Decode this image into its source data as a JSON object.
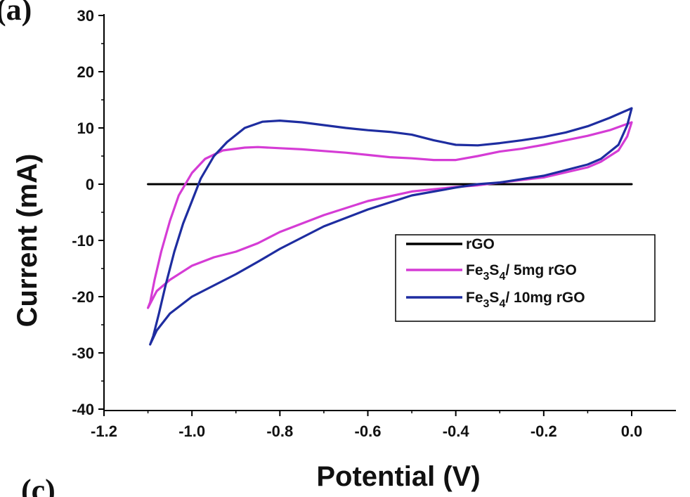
{
  "panel_label_top": "(a)",
  "panel_label_bottom": "(c)",
  "chart_data": {
    "type": "line",
    "xlabel": "Potential (V)",
    "ylabel": "Current (mA)",
    "xlim": [
      -1.2,
      0.1
    ],
    "ylim": [
      -40,
      30
    ],
    "xticks": [
      -1.2,
      -1.0,
      -0.8,
      -0.6,
      -0.4,
      -0.2,
      0.0
    ],
    "xtick_labels": [
      "-1.2",
      "-1.0",
      "-0.8",
      "-0.6",
      "-0.4",
      "-0.2",
      "0.0"
    ],
    "yticks": [
      -40,
      -30,
      -20,
      -10,
      0,
      10,
      20,
      30
    ],
    "ytick_labels": [
      "-40",
      "-30",
      "-20",
      "-10",
      "0",
      "10",
      "20",
      "30"
    ],
    "grid": false,
    "legend_position": "right",
    "series": [
      {
        "name": "rGO",
        "color": "#000000",
        "points": [
          [
            -1.1,
            0
          ],
          [
            0.0,
            0
          ]
        ]
      },
      {
        "name_parts": [
          "Fe",
          "3",
          "S",
          "4",
          "/ 5mg rGO"
        ],
        "color": "#d53cd5",
        "points": [
          [
            -1.1,
            -22
          ],
          [
            -1.095,
            -21
          ],
          [
            -1.085,
            -17
          ],
          [
            -1.07,
            -12
          ],
          [
            -1.05,
            -6.5
          ],
          [
            -1.03,
            -2
          ],
          [
            -1.0,
            2
          ],
          [
            -0.97,
            4.5
          ],
          [
            -0.93,
            6
          ],
          [
            -0.88,
            6.5
          ],
          [
            -0.85,
            6.6
          ],
          [
            -0.8,
            6.4
          ],
          [
            -0.75,
            6.2
          ],
          [
            -0.7,
            5.9
          ],
          [
            -0.65,
            5.6
          ],
          [
            -0.6,
            5.2
          ],
          [
            -0.55,
            4.8
          ],
          [
            -0.5,
            4.6
          ],
          [
            -0.45,
            4.3
          ],
          [
            -0.4,
            4.3
          ],
          [
            -0.35,
            5
          ],
          [
            -0.3,
            5.8
          ],
          [
            -0.25,
            6.3
          ],
          [
            -0.2,
            7
          ],
          [
            -0.15,
            7.8
          ],
          [
            -0.1,
            8.6
          ],
          [
            -0.05,
            9.6
          ],
          [
            0.0,
            11
          ],
          [
            -0.01,
            8.5
          ],
          [
            -0.03,
            6
          ],
          [
            -0.07,
            4
          ],
          [
            -0.1,
            3
          ],
          [
            -0.2,
            1.2
          ],
          [
            -0.3,
            0.3
          ],
          [
            -0.35,
            -0.2
          ],
          [
            -0.4,
            -0.5
          ],
          [
            -0.5,
            -1.3
          ],
          [
            -0.6,
            -3
          ],
          [
            -0.7,
            -5.5
          ],
          [
            -0.8,
            -8.5
          ],
          [
            -0.85,
            -10.5
          ],
          [
            -0.9,
            -12
          ],
          [
            -0.95,
            -13
          ],
          [
            -1.0,
            -14.5
          ],
          [
            -1.05,
            -17
          ],
          [
            -1.08,
            -19
          ],
          [
            -1.1,
            -22
          ]
        ]
      },
      {
        "name_parts": [
          "Fe",
          "3",
          "S",
          "4",
          "/ 10mg rGO"
        ],
        "color": "#1e2da0",
        "points": [
          [
            -1.095,
            -28.5
          ],
          [
            -1.088,
            -27
          ],
          [
            -1.075,
            -23
          ],
          [
            -1.06,
            -18
          ],
          [
            -1.04,
            -12
          ],
          [
            -1.02,
            -7
          ],
          [
            -1.0,
            -3
          ],
          [
            -0.98,
            1
          ],
          [
            -0.95,
            5
          ],
          [
            -0.92,
            7.5
          ],
          [
            -0.88,
            10
          ],
          [
            -0.84,
            11.1
          ],
          [
            -0.8,
            11.3
          ],
          [
            -0.75,
            11
          ],
          [
            -0.7,
            10.5
          ],
          [
            -0.65,
            10
          ],
          [
            -0.6,
            9.6
          ],
          [
            -0.55,
            9.3
          ],
          [
            -0.5,
            8.8
          ],
          [
            -0.45,
            7.8
          ],
          [
            -0.4,
            7
          ],
          [
            -0.35,
            6.9
          ],
          [
            -0.3,
            7.3
          ],
          [
            -0.25,
            7.8
          ],
          [
            -0.2,
            8.4
          ],
          [
            -0.15,
            9.2
          ],
          [
            -0.1,
            10.3
          ],
          [
            -0.05,
            11.8
          ],
          [
            0.0,
            13.5
          ],
          [
            -0.01,
            10.5
          ],
          [
            -0.03,
            7
          ],
          [
            -0.07,
            4.5
          ],
          [
            -0.1,
            3.5
          ],
          [
            -0.2,
            1.5
          ],
          [
            -0.3,
            0.3
          ],
          [
            -0.35,
            0
          ],
          [
            -0.4,
            -0.6
          ],
          [
            -0.5,
            -2
          ],
          [
            -0.6,
            -4.5
          ],
          [
            -0.7,
            -7.5
          ],
          [
            -0.8,
            -11.5
          ],
          [
            -0.85,
            -13.8
          ],
          [
            -0.9,
            -16
          ],
          [
            -0.95,
            -18
          ],
          [
            -1.0,
            -20
          ],
          [
            -1.05,
            -23
          ],
          [
            -1.08,
            -26
          ],
          [
            -1.095,
            -28.5
          ]
        ]
      }
    ]
  }
}
